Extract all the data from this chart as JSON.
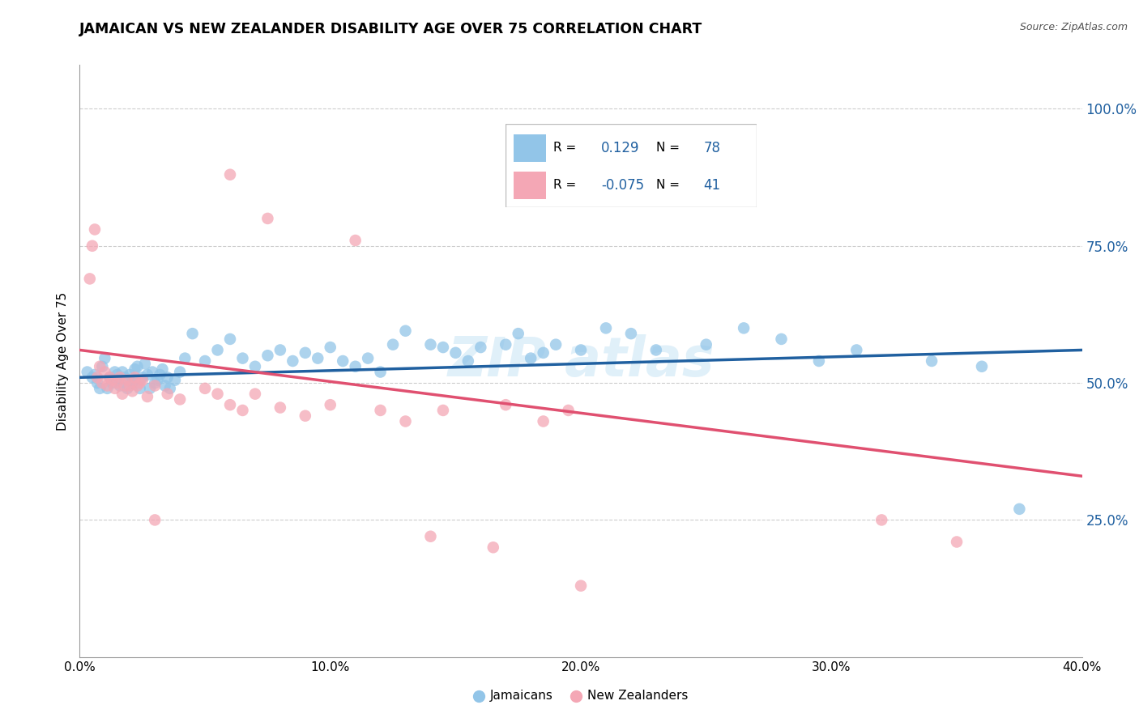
{
  "title": "JAMAICAN VS NEW ZEALANDER DISABILITY AGE OVER 75 CORRELATION CHART",
  "source": "Source: ZipAtlas.com",
  "ylabel": "Disability Age Over 75",
  "xmin": 0.0,
  "xmax": 0.4,
  "ymin": 0.0,
  "ymax": 1.08,
  "ytick_labels": [
    "25.0%",
    "50.0%",
    "75.0%",
    "100.0%"
  ],
  "ytick_values": [
    0.25,
    0.5,
    0.75,
    1.0
  ],
  "xtick_labels": [
    "0.0%",
    "10.0%",
    "20.0%",
    "30.0%",
    "40.0%"
  ],
  "xtick_values": [
    0.0,
    0.1,
    0.2,
    0.3,
    0.4
  ],
  "blue_color": "#92C5E8",
  "pink_color": "#F4A7B5",
  "blue_line_color": "#2060A0",
  "pink_line_color": "#E05070",
  "legend_r_blue": "0.129",
  "legend_n_blue": "78",
  "legend_r_pink": "-0.075",
  "legend_n_pink": "41",
  "legend_text_color": "#2060A0",
  "right_axis_color": "#2060A0",
  "blue_points_x": [
    0.003,
    0.005,
    0.006,
    0.007,
    0.008,
    0.009,
    0.01,
    0.011,
    0.012,
    0.013,
    0.014,
    0.015,
    0.015,
    0.016,
    0.017,
    0.018,
    0.019,
    0.02,
    0.021,
    0.022,
    0.022,
    0.023,
    0.024,
    0.025,
    0.026,
    0.027,
    0.028,
    0.029,
    0.03,
    0.031,
    0.032,
    0.033,
    0.034,
    0.035,
    0.036,
    0.038,
    0.04,
    0.042,
    0.045,
    0.05,
    0.055,
    0.06,
    0.065,
    0.07,
    0.075,
    0.08,
    0.085,
    0.09,
    0.095,
    0.1,
    0.105,
    0.11,
    0.115,
    0.12,
    0.125,
    0.13,
    0.14,
    0.145,
    0.15,
    0.155,
    0.16,
    0.17,
    0.175,
    0.18,
    0.185,
    0.19,
    0.2,
    0.21,
    0.22,
    0.23,
    0.25,
    0.265,
    0.28,
    0.295,
    0.31,
    0.34,
    0.36,
    0.375
  ],
  "blue_points_y": [
    0.52,
    0.51,
    0.515,
    0.5,
    0.49,
    0.53,
    0.545,
    0.49,
    0.51,
    0.5,
    0.52,
    0.505,
    0.515,
    0.495,
    0.52,
    0.51,
    0.49,
    0.515,
    0.5,
    0.505,
    0.525,
    0.53,
    0.49,
    0.51,
    0.535,
    0.515,
    0.49,
    0.52,
    0.5,
    0.505,
    0.515,
    0.525,
    0.495,
    0.51,
    0.49,
    0.505,
    0.52,
    0.545,
    0.59,
    0.54,
    0.56,
    0.58,
    0.545,
    0.53,
    0.55,
    0.56,
    0.54,
    0.555,
    0.545,
    0.565,
    0.54,
    0.53,
    0.545,
    0.52,
    0.57,
    0.595,
    0.57,
    0.565,
    0.555,
    0.54,
    0.565,
    0.57,
    0.59,
    0.545,
    0.555,
    0.57,
    0.56,
    0.6,
    0.59,
    0.56,
    0.57,
    0.6,
    0.58,
    0.54,
    0.56,
    0.54,
    0.53,
    0.27
  ],
  "pink_points_x": [
    0.004,
    0.005,
    0.006,
    0.007,
    0.008,
    0.009,
    0.01,
    0.011,
    0.012,
    0.013,
    0.014,
    0.015,
    0.016,
    0.017,
    0.018,
    0.019,
    0.02,
    0.021,
    0.022,
    0.023,
    0.024,
    0.025,
    0.027,
    0.03,
    0.035,
    0.04,
    0.05,
    0.055,
    0.06,
    0.065,
    0.07,
    0.08,
    0.09,
    0.1,
    0.12,
    0.13,
    0.145,
    0.17,
    0.185,
    0.195,
    0.35
  ],
  "pink_points_y": [
    0.69,
    0.75,
    0.78,
    0.51,
    0.53,
    0.5,
    0.52,
    0.495,
    0.51,
    0.505,
    0.49,
    0.5,
    0.51,
    0.48,
    0.495,
    0.505,
    0.495,
    0.485,
    0.51,
    0.495,
    0.5,
    0.505,
    0.475,
    0.495,
    0.48,
    0.47,
    0.49,
    0.48,
    0.46,
    0.45,
    0.48,
    0.455,
    0.44,
    0.46,
    0.45,
    0.43,
    0.45,
    0.46,
    0.43,
    0.45,
    0.21
  ],
  "extra_pink_x": [
    0.06,
    0.075,
    0.11,
    0.03,
    0.14,
    0.165,
    0.2,
    0.32
  ],
  "extra_pink_y": [
    0.88,
    0.8,
    0.76,
    0.25,
    0.22,
    0.2,
    0.13,
    0.25
  ],
  "blue_trend_x0": 0.0,
  "blue_trend_y0": 0.51,
  "blue_trend_x1": 0.4,
  "blue_trend_y1": 0.56,
  "pink_trend_x0": 0.0,
  "pink_trend_y0": 0.56,
  "pink_trend_x1": 0.4,
  "pink_trend_y1": 0.33
}
